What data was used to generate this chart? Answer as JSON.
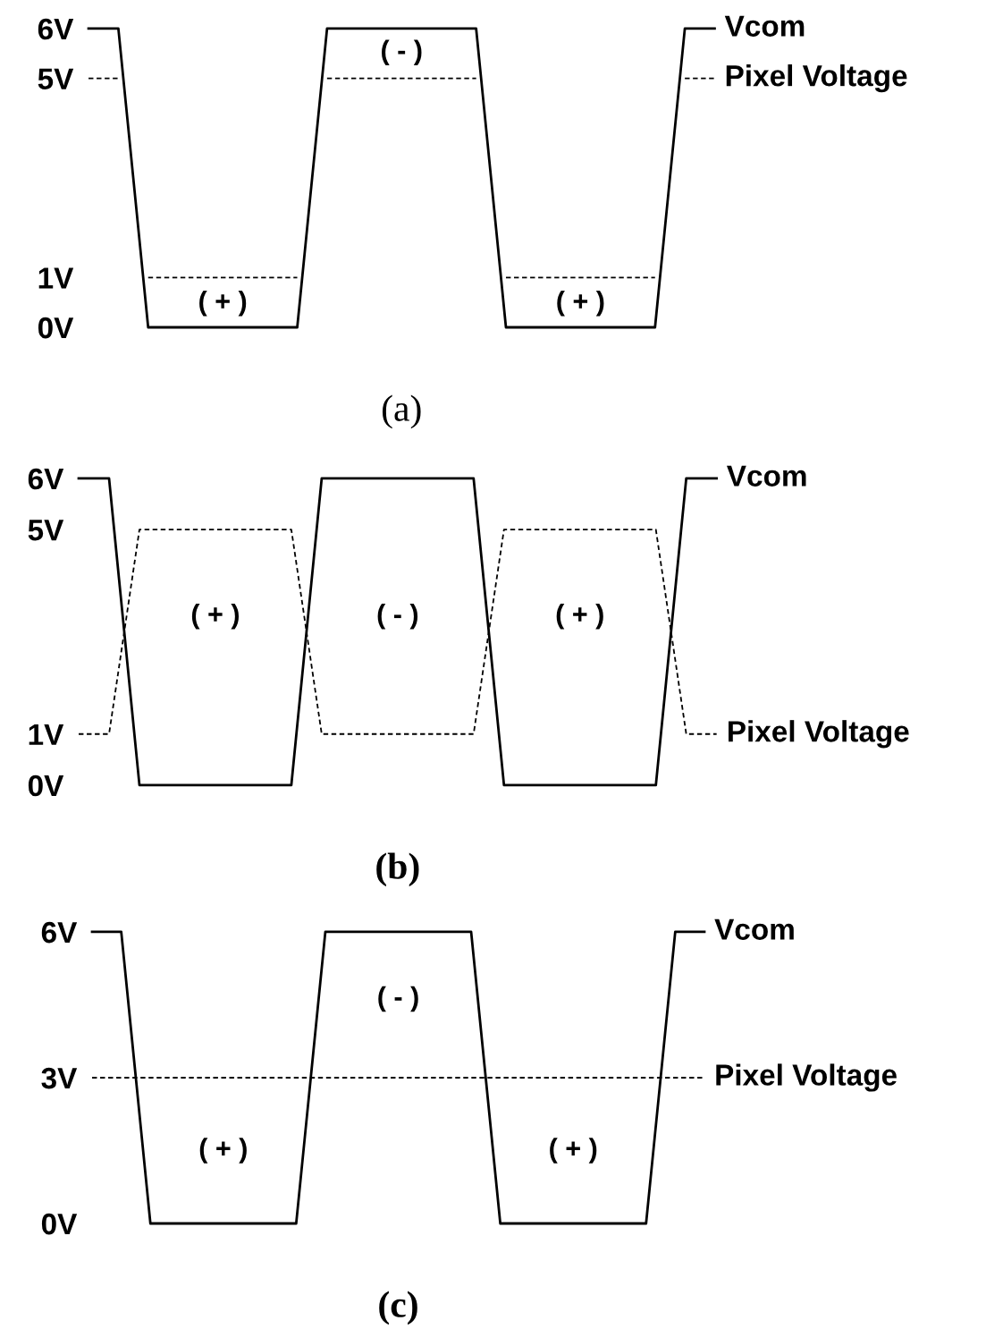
{
  "chart_data": [
    {
      "type": "line",
      "title": "(a)",
      "categories": [
        null,
        null,
        null,
        null,
        null,
        null,
        null,
        null,
        null,
        null,
        null,
        null,
        null,
        null,
        null,
        null,
        null,
        null,
        null,
        null,
        null,
        null,
        null,
        null,
        null,
        null,
        null,
        null,
        null,
        null,
        null,
        null,
        null,
        null,
        null,
        null,
        null,
        null,
        null,
        null,
        null,
        null,
        null
      ],
      "ylim": [
        0,
        6
      ],
      "yticks": [
        {
          "value": 0,
          "label": "0V"
        },
        {
          "value": 1,
          "label": "1V"
        },
        {
          "value": 5,
          "label": "5V"
        },
        {
          "value": 6,
          "label": "6V"
        }
      ],
      "series": [
        {
          "name": "Vcom",
          "color": "#000000",
          "line_style": "solid",
          "values": [
            6,
            6,
            6,
            3,
            0,
            0,
            0,
            0,
            0,
            0,
            0,
            0,
            0,
            0,
            0,
            3,
            6,
            6,
            6,
            6,
            6,
            6,
            6,
            6,
            6,
            6,
            6,
            3,
            0,
            0,
            0,
            0,
            0,
            0,
            0,
            0,
            0,
            0,
            0,
            3,
            6,
            6,
            6
          ]
        },
        {
          "name": "Pixel Voltage",
          "color": "#000000",
          "line_style": "dashed",
          "values": [
            5,
            5,
            5,
            null,
            1,
            1,
            1,
            1,
            1,
            1,
            1,
            1,
            1,
            1,
            1,
            null,
            5,
            5,
            5,
            5,
            5,
            5,
            5,
            5,
            5,
            5,
            5,
            null,
            1,
            1,
            1,
            1,
            1,
            1,
            1,
            1,
            1,
            1,
            1,
            null,
            5,
            5,
            5
          ]
        }
      ],
      "annotations": [
        "( + )",
        "( - )",
        "( + )"
      ]
    },
    {
      "type": "line",
      "title": "(b)",
      "categories": [
        null,
        null,
        null,
        null,
        null,
        null,
        null,
        null,
        null,
        null,
        null,
        null,
        null,
        null,
        null,
        null,
        null,
        null,
        null,
        null,
        null,
        null,
        null,
        null,
        null,
        null,
        null,
        null,
        null,
        null,
        null,
        null,
        null,
        null,
        null,
        null,
        null,
        null,
        null,
        null,
        null,
        null,
        null
      ],
      "ylim": [
        0,
        6
      ],
      "yticks": [
        {
          "value": 0,
          "label": "0V"
        },
        {
          "value": 1,
          "label": "1V"
        },
        {
          "value": 5,
          "label": "5V"
        },
        {
          "value": 6,
          "label": "6V"
        }
      ],
      "series": [
        {
          "name": "Vcom",
          "color": "#000000",
          "line_style": "solid",
          "values": [
            6,
            6,
            6,
            3,
            0,
            0,
            0,
            0,
            0,
            0,
            0,
            0,
            0,
            0,
            0,
            3,
            6,
            6,
            6,
            6,
            6,
            6,
            6,
            6,
            6,
            6,
            6,
            3,
            0,
            0,
            0,
            0,
            0,
            0,
            0,
            0,
            0,
            0,
            0,
            3,
            6,
            6,
            6
          ]
        },
        {
          "name": "Pixel Voltage",
          "color": "#000000",
          "line_style": "dashed",
          "values": [
            1,
            1,
            1,
            3,
            5,
            5,
            5,
            5,
            5,
            5,
            5,
            5,
            5,
            5,
            5,
            3,
            1,
            1,
            1,
            1,
            1,
            1,
            1,
            1,
            1,
            1,
            1,
            3,
            5,
            5,
            5,
            5,
            5,
            5,
            5,
            5,
            5,
            5,
            5,
            3,
            1,
            1,
            1
          ]
        }
      ],
      "annotations": [
        "( + )",
        "( - )",
        "( + )"
      ]
    },
    {
      "type": "line",
      "title": "(c)",
      "categories": [
        null,
        null,
        null,
        null,
        null,
        null,
        null,
        null,
        null,
        null,
        null,
        null,
        null,
        null,
        null,
        null,
        null,
        null,
        null,
        null,
        null,
        null,
        null,
        null,
        null,
        null,
        null,
        null,
        null,
        null,
        null,
        null,
        null,
        null,
        null,
        null,
        null,
        null,
        null,
        null,
        null,
        null,
        null
      ],
      "ylim": [
        0,
        6
      ],
      "yticks": [
        {
          "value": 0,
          "label": "0V"
        },
        {
          "value": 3,
          "label": "3V"
        },
        {
          "value": 6,
          "label": "6V"
        }
      ],
      "series": [
        {
          "name": "Vcom",
          "color": "#000000",
          "line_style": "solid",
          "values": [
            6,
            6,
            6,
            3,
            0,
            0,
            0,
            0,
            0,
            0,
            0,
            0,
            0,
            0,
            0,
            3,
            6,
            6,
            6,
            6,
            6,
            6,
            6,
            6,
            6,
            6,
            6,
            3,
            0,
            0,
            0,
            0,
            0,
            0,
            0,
            0,
            0,
            0,
            0,
            3,
            6,
            6,
            6
          ]
        },
        {
          "name": "Pixel Voltage",
          "color": "#000000",
          "line_style": "dashed",
          "values": [
            3,
            3,
            3,
            3,
            3,
            3,
            3,
            3,
            3,
            3,
            3,
            3,
            3,
            3,
            3,
            3,
            3,
            3,
            3,
            3,
            3,
            3,
            3,
            3,
            3,
            3,
            3,
            3,
            3,
            3,
            3,
            3,
            3,
            3,
            3,
            3,
            3,
            3,
            3,
            3,
            3,
            3,
            3
          ]
        }
      ],
      "annotations": [
        "( + )",
        "( - )",
        "( + )"
      ]
    }
  ]
}
